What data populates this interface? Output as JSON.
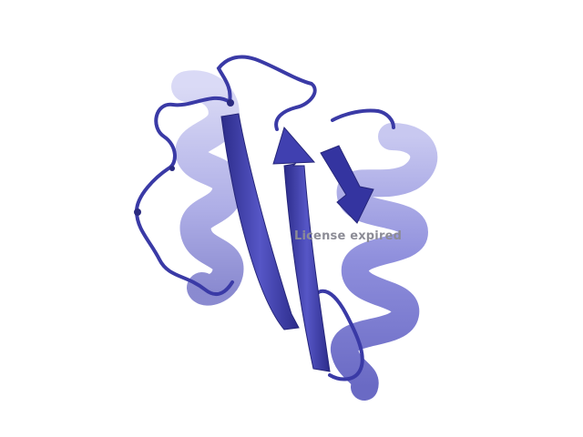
{
  "viewer": {
    "watermark": "License expired",
    "background": "#ffffff",
    "colors": {
      "strand": "#3a3a9e",
      "strand_highlight": "#5a5ac4",
      "helix_front": "#8c8cd8",
      "helix_back": "#b4b4e8",
      "loop": "#3a3aa6"
    }
  }
}
